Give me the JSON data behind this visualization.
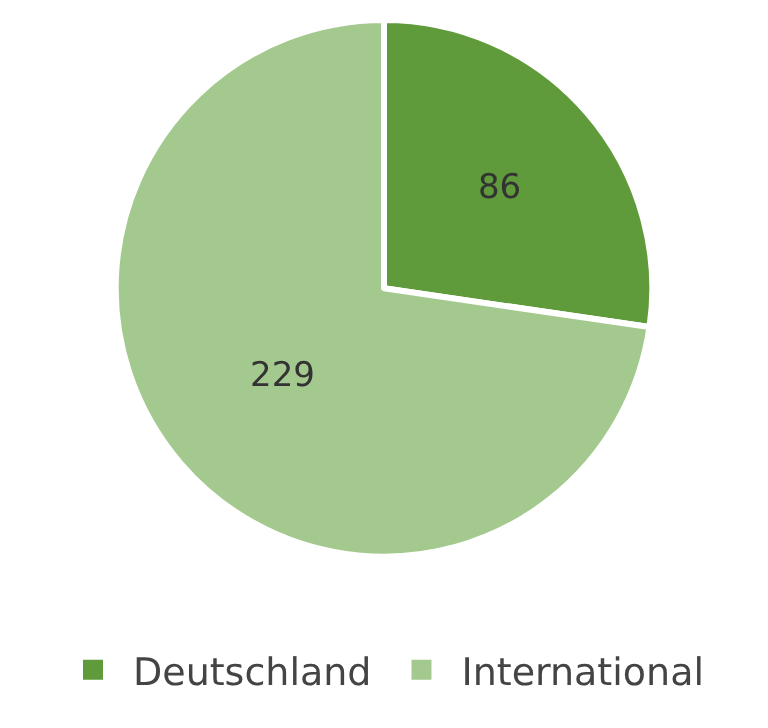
{
  "chart_data": {
    "type": "pie",
    "categories": [
      "Deutschland",
      "International"
    ],
    "values": [
      86,
      229
    ],
    "colors": [
      "#5f9a3b",
      "#a4c98f"
    ],
    "data_labels": true,
    "legend": "bottom"
  }
}
